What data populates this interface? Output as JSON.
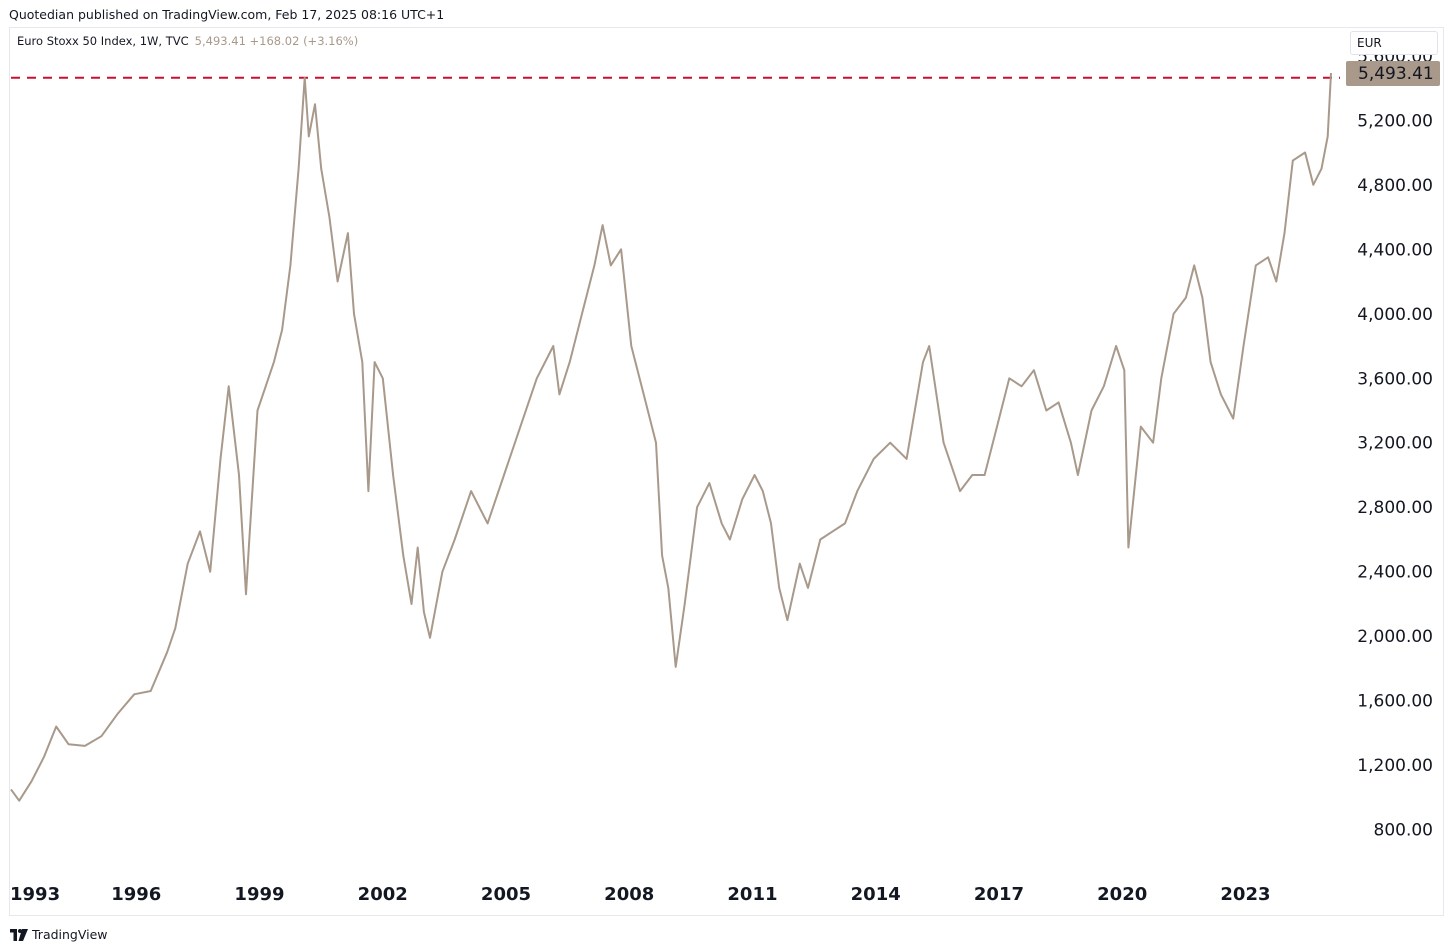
{
  "header": {
    "published": "Quotedian published on TradingView.com, Feb 17, 2025 08:16 UTC+1"
  },
  "legend": {
    "symbol": "Euro Stoxx 50 Index, 1W, TVC",
    "values": "5,493.41 +168.02 (+3.16%)"
  },
  "currency_button": "EUR",
  "footer": {
    "brand": "TradingView",
    "logo": "tradingview-logo-icon"
  },
  "colors": {
    "line": "#a8998b",
    "dashed": "#c8102e",
    "last_price_badge": "#a8998b"
  },
  "chart_data": {
    "type": "line",
    "title": "Euro Stoxx 50 Index, 1W, TVC",
    "xlabel": "",
    "ylabel": "",
    "x_ticks": [
      "1993",
      "1996",
      "1999",
      "2002",
      "2005",
      "2008",
      "2011",
      "2014",
      "2017",
      "2020",
      "2023"
    ],
    "x_tick_values": [
      1993,
      1996,
      1999,
      2002,
      2005,
      2008,
      2011,
      2014,
      2017,
      2020,
      2023
    ],
    "y_ticks": [
      "800.00",
      "1,200.00",
      "1,600.00",
      "2,000.00",
      "2,400.00",
      "2,800.00",
      "3,200.00",
      "3,600.00",
      "4,000.00",
      "4,400.00",
      "4,800.00",
      "5,200.00",
      "5,600.00"
    ],
    "y_tick_values": [
      800,
      1200,
      1600,
      2000,
      2400,
      2800,
      3200,
      3600,
      4000,
      4400,
      4800,
      5200,
      5600
    ],
    "xlim": [
      1993.0,
      2025.35
    ],
    "ylim": [
      550,
      5760
    ],
    "last_value": 5493.41,
    "last_value_label": "5,493.41",
    "horizontal_line": 5464,
    "grid": false,
    "series": [
      {
        "x": [
          1993.0,
          1993.2,
          1993.5,
          1993.8,
          1994.1,
          1994.4,
          1994.8,
          1995.2,
          1995.6,
          1996.0,
          1996.4,
          1996.8,
          1997.0,
          1997.3,
          1997.6,
          1997.85,
          1998.1,
          1998.3,
          1998.55,
          1998.72,
          1998.8,
          1999.0,
          1999.2,
          1999.4,
          1999.6,
          1999.8,
          2000.0,
          2000.15,
          2000.25,
          2000.4,
          2000.55,
          2000.75,
          2000.95,
          2001.2,
          2001.35,
          2001.55,
          2001.7,
          2001.85,
          2002.05,
          2002.3,
          2002.55,
          2002.75,
          2002.9,
          2003.05,
          2003.2,
          2003.5,
          2003.8,
          2004.2,
          2004.6,
          2005.0,
          2005.4,
          2005.8,
          2006.2,
          2006.35,
          2006.6,
          2006.9,
          2007.2,
          2007.4,
          2007.6,
          2007.85,
          2008.1,
          2008.4,
          2008.7,
          2008.85,
          2009.0,
          2009.18,
          2009.4,
          2009.7,
          2010.0,
          2010.3,
          2010.5,
          2010.8,
          2011.1,
          2011.3,
          2011.5,
          2011.7,
          2011.9,
          2012.2,
          2012.4,
          2012.7,
          2013.0,
          2013.3,
          2013.6,
          2014.0,
          2014.4,
          2014.8,
          2015.2,
          2015.35,
          2015.7,
          2016.1,
          2016.4,
          2016.7,
          2017.0,
          2017.3,
          2017.6,
          2017.9,
          2018.2,
          2018.5,
          2018.8,
          2018.97,
          2019.3,
          2019.6,
          2019.9,
          2020.1,
          2020.2,
          2020.5,
          2020.8,
          2021.0,
          2021.3,
          2021.6,
          2021.8,
          2022.0,
          2022.2,
          2022.45,
          2022.75,
          2023.0,
          2023.3,
          2023.6,
          2023.8,
          2024.0,
          2024.2,
          2024.5,
          2024.7,
          2024.9,
          2025.05,
          2025.13
        ],
        "y": [
          1050,
          980,
          1100,
          1250,
          1440,
          1330,
          1320,
          1380,
          1520,
          1640,
          1660,
          1900,
          2050,
          2450,
          2650,
          2400,
          3100,
          3550,
          3000,
          2260,
          2600,
          3400,
          3550,
          3700,
          3900,
          4300,
          4900,
          5464,
          5100,
          5300,
          4900,
          4600,
          4200,
          4500,
          4000,
          3700,
          2900,
          3700,
          3600,
          3000,
          2500,
          2200,
          2550,
          2150,
          1990,
          2400,
          2600,
          2900,
          2700,
          3000,
          3300,
          3600,
          3800,
          3500,
          3700,
          4000,
          4300,
          4550,
          4300,
          4400,
          3800,
          3500,
          3200,
          2500,
          2300,
          1810,
          2200,
          2800,
          2950,
          2700,
          2600,
          2850,
          3000,
          2900,
          2700,
          2300,
          2100,
          2450,
          2300,
          2600,
          2650,
          2700,
          2900,
          3100,
          3200,
          3100,
          3700,
          3800,
          3200,
          2900,
          3000,
          3000,
          3300,
          3600,
          3550,
          3650,
          3400,
          3450,
          3200,
          3000,
          3400,
          3550,
          3800,
          3650,
          2550,
          3300,
          3200,
          3600,
          4000,
          4100,
          4300,
          4100,
          3700,
          3500,
          3350,
          3800,
          4300,
          4350,
          4200,
          4500,
          4950,
          5000,
          4800,
          4900,
          5100,
          5493.41
        ]
      }
    ]
  }
}
